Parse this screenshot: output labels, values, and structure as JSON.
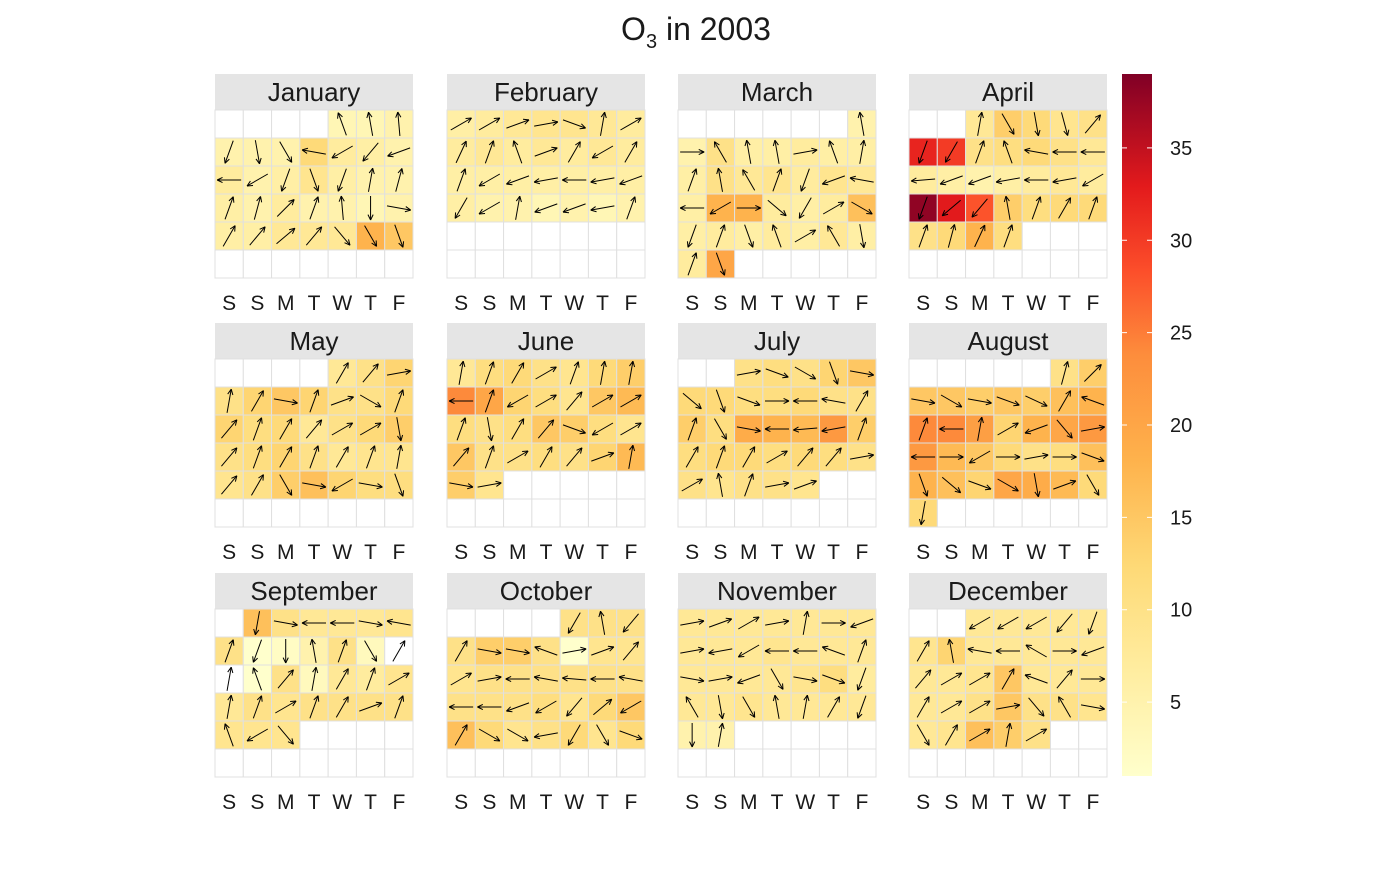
{
  "chart_data": {
    "type": "heatmap",
    "title": "O",
    "title_subscript": "3",
    "title_suffix": " in 2003",
    "year": 2003,
    "weekday_labels": [
      "S",
      "S",
      "M",
      "T",
      "W",
      "T",
      "F"
    ],
    "months": [
      {
        "name": "January",
        "start_weekday": 4,
        "days": 31,
        "values": [
          4,
          4,
          5,
          5,
          5,
          5,
          12,
          7,
          6,
          5,
          7,
          5,
          6,
          9,
          6,
          5,
          5,
          6,
          5,
          7,
          5,
          5,
          4,
          5,
          6,
          6,
          8,
          8,
          8,
          18,
          15
        ],
        "wind_deg": [
          340,
          350,
          355,
          200,
          170,
          150,
          280,
          240,
          220,
          250,
          270,
          240,
          200,
          160,
          200,
          10,
          15,
          20,
          15,
          45,
          20,
          355,
          180,
          100,
          30,
          40,
          50,
          40,
          140,
          150,
          160
        ]
      },
      {
        "name": "February",
        "start_weekday": 0,
        "days": 28,
        "values": [
          6,
          7,
          8,
          9,
          9,
          8,
          7,
          7,
          8,
          7,
          8,
          7,
          8,
          7,
          6,
          6,
          6,
          6,
          6,
          6,
          6,
          6,
          5,
          5,
          4,
          5,
          4,
          5
        ],
        "wind_deg": [
          60,
          60,
          70,
          80,
          110,
          10,
          60,
          25,
          20,
          340,
          70,
          30,
          240,
          30,
          20,
          240,
          250,
          260,
          270,
          260,
          250,
          210,
          240,
          10,
          250,
          250,
          260,
          20
        ]
      },
      {
        "name": "March",
        "start_weekday": 6,
        "days": 31,
        "values": [
          5,
          5,
          10,
          6,
          6,
          7,
          6,
          6,
          6,
          10,
          8,
          9,
          7,
          9,
          8,
          6,
          18,
          18,
          7,
          6,
          7,
          16,
          6,
          7,
          6,
          7,
          6,
          8,
          6,
          7,
          20
        ],
        "wind_deg": [
          350,
          90,
          330,
          350,
          350,
          80,
          340,
          10,
          20,
          350,
          330,
          20,
          200,
          250,
          280,
          270,
          240,
          90,
          130,
          210,
          60,
          120,
          200,
          20,
          160,
          340,
          60,
          330,
          170,
          20,
          160
        ]
      },
      {
        "name": "April",
        "start_weekday": 2,
        "days": 30,
        "values": [
          8,
          14,
          12,
          9,
          10,
          32,
          30,
          10,
          11,
          12,
          10,
          8,
          7,
          6,
          5,
          6,
          7,
          8,
          7,
          38,
          33,
          28,
          14,
          11,
          12,
          12,
          10,
          12,
          18,
          11
        ],
        "wind_deg": [
          10,
          150,
          170,
          165,
          40,
          200,
          210,
          20,
          340,
          280,
          270,
          270,
          265,
          250,
          250,
          260,
          270,
          260,
          240,
          200,
          230,
          220,
          350,
          20,
          30,
          20,
          20,
          15,
          25,
          20
        ]
      },
      {
        "name": "May",
        "start_weekday": 4,
        "days": 31,
        "values": [
          8,
          10,
          13,
          10,
          13,
          15,
          13,
          10,
          10,
          12,
          13,
          11,
          12,
          8,
          10,
          12,
          14,
          10,
          11,
          13,
          10,
          8,
          9,
          9,
          9,
          10,
          14,
          16,
          13,
          11,
          11
        ],
        "wind_deg": [
          30,
          40,
          80,
          10,
          30,
          100,
          20,
          70,
          120,
          20,
          40,
          20,
          30,
          40,
          60,
          60,
          170,
          40,
          20,
          30,
          20,
          30,
          20,
          10,
          40,
          30,
          150,
          100,
          240,
          100,
          160
        ]
      },
      {
        "name": "June",
        "start_weekday": 0,
        "days": 30,
        "values": [
          8,
          11,
          12,
          10,
          9,
          12,
          14,
          24,
          20,
          13,
          11,
          9,
          15,
          17,
          11,
          10,
          11,
          15,
          14,
          11,
          9,
          15,
          10,
          10,
          11,
          10,
          13,
          17,
          14,
          9
        ],
        "wind_deg": [
          10,
          20,
          30,
          60,
          20,
          10,
          10,
          270,
          20,
          240,
          60,
          40,
          60,
          60,
          20,
          170,
          30,
          40,
          110,
          240,
          60,
          40,
          20,
          60,
          30,
          40,
          70,
          10,
          100,
          80
        ]
      },
      {
        "name": "July",
        "start_weekday": 2,
        "days": 31,
        "values": [
          10,
          11,
          10,
          13,
          15,
          12,
          12,
          11,
          11,
          12,
          10,
          10,
          14,
          11,
          19,
          18,
          17,
          22,
          14,
          11,
          12,
          12,
          11,
          12,
          11,
          10,
          10,
          9,
          10,
          10,
          9
        ],
        "wind_deg": [
          80,
          110,
          120,
          160,
          100,
          130,
          160,
          110,
          90,
          270,
          280,
          30,
          20,
          150,
          100,
          270,
          265,
          260,
          20,
          30,
          20,
          30,
          60,
          40,
          40,
          80,
          60,
          350,
          20,
          80,
          70
        ]
      },
      {
        "name": "August",
        "start_weekday": 5,
        "days": 31,
        "values": [
          10,
          14,
          15,
          15,
          14,
          15,
          14,
          16,
          18,
          24,
          24,
          21,
          13,
          18,
          20,
          22,
          22,
          17,
          15,
          12,
          10,
          11,
          16,
          18,
          16,
          13,
          20,
          19,
          17,
          12,
          12
        ],
        "wind_deg": [
          15,
          45,
          100,
          120,
          100,
          110,
          115,
          30,
          290,
          20,
          270,
          10,
          60,
          250,
          140,
          80,
          270,
          90,
          240,
          90,
          80,
          90,
          110,
          160,
          130,
          110,
          120,
          170,
          70,
          150,
          190
        ]
      },
      {
        "name": "September",
        "start_weekday": 1,
        "days": 30,
        "values": [
          16,
          10,
          8,
          8,
          8,
          9,
          10,
          1,
          2,
          5,
          10,
          3,
          0,
          0,
          1,
          10,
          3,
          8,
          7,
          9,
          8,
          10,
          9,
          10,
          10,
          10,
          10,
          9,
          9,
          9
        ],
        "wind_deg": [
          190,
          100,
          270,
          270,
          100,
          280,
          20,
          200,
          180,
          350,
          20,
          150,
          30,
          10,
          340,
          40,
          10,
          30,
          20,
          60,
          10,
          20,
          60,
          20,
          30,
          70,
          20,
          340,
          240,
          140
        ]
      },
      {
        "name": "October",
        "start_weekday": 4,
        "days": 31,
        "values": [
          10,
          10,
          10,
          10,
          14,
          14,
          10,
          1,
          9,
          9,
          9,
          10,
          10,
          10,
          10,
          10,
          10,
          10,
          10,
          10,
          11,
          9,
          12,
          15,
          16,
          12,
          9,
          10,
          12,
          9,
          12
        ],
        "wind_deg": [
          210,
          350,
          220,
          30,
          100,
          100,
          290,
          80,
          70,
          40,
          60,
          80,
          270,
          280,
          275,
          270,
          280,
          270,
          270,
          250,
          240,
          220,
          50,
          240,
          30,
          120,
          120,
          260,
          210,
          150,
          110
        ]
      },
      {
        "name": "November",
        "start_weekday": 0,
        "days": 30,
        "values": [
          8,
          8,
          8,
          8,
          8,
          8,
          8,
          8,
          8,
          8,
          9,
          8,
          8,
          8,
          8,
          8,
          8,
          8,
          9,
          11,
          7,
          8,
          8,
          9,
          8,
          8,
          8,
          8,
          5,
          5
        ],
        "wind_deg": [
          80,
          70,
          60,
          80,
          10,
          90,
          250,
          80,
          260,
          240,
          270,
          270,
          290,
          20,
          100,
          80,
          250,
          150,
          100,
          110,
          200,
          330,
          170,
          150,
          350,
          10,
          30,
          200,
          180,
          10
        ]
      },
      {
        "name": "December",
        "start_weekday": 2,
        "days": 31,
        "values": [
          8,
          8,
          8,
          8,
          8,
          9,
          13,
          8,
          8,
          8,
          8,
          8,
          8,
          8,
          9,
          15,
          8,
          8,
          8,
          8,
          8,
          10,
          15,
          10,
          10,
          9,
          8,
          9,
          16,
          14,
          10
        ],
        "wind_deg": [
          240,
          240,
          240,
          220,
          200,
          30,
          350,
          280,
          270,
          300,
          90,
          250,
          40,
          60,
          60,
          30,
          290,
          40,
          90,
          30,
          60,
          60,
          80,
          140,
          330,
          100,
          150,
          30,
          60,
          10,
          60
        ]
      }
    ],
    "colorbar": {
      "min": 1,
      "max": 39,
      "ticks": [
        5,
        10,
        15,
        20,
        25,
        30,
        35
      ]
    },
    "legend_placement": "right",
    "grid": true
  }
}
